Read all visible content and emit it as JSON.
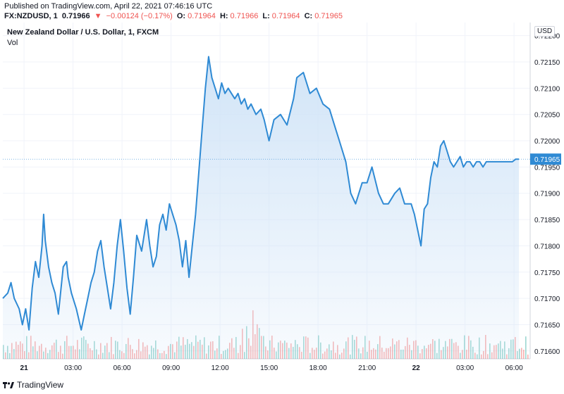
{
  "header": {
    "published": "Published on TradingView.com, April 22, 2021 07:46:16 UTC",
    "symbol": "FX:NZDUSD, 1",
    "last": "0.71966",
    "change": "−0.00124 (−0.17%)",
    "open_label": "O:",
    "open": "0.71964",
    "high_label": "H:",
    "high": "0.71966",
    "low_label": "L:",
    "low": "0.71964",
    "close_label": "C:",
    "close": "0.71965"
  },
  "legend": {
    "title": "New Zealand Dollar / U.S. Dollar, 1, FXCM",
    "vol": "Vol"
  },
  "currency": "USD",
  "footer": {
    "brand": "TradingView"
  },
  "colors": {
    "line": "#2f8ad4",
    "fill_top": "#cfe3f7",
    "grid": "#f0f3fa",
    "vol_up": "#26a69a",
    "vol_down": "#ef5350",
    "price_tag": "#2f8ad4"
  },
  "chart_data": {
    "type": "area",
    "title": "New Zealand Dollar / U.S. Dollar, 1, FXCM",
    "x_ticks": [
      "21",
      "03:00",
      "06:00",
      "09:00",
      "12:00",
      "15:00",
      "18:00",
      "21:00",
      "22",
      "03:00",
      "06:00"
    ],
    "y_ticks": [
      "0.72200",
      "0.72150",
      "0.72100",
      "0.72050",
      "0.72000",
      "0.71950",
      "0.71900",
      "0.71850",
      "0.71800",
      "0.71750",
      "0.71700",
      "0.71650",
      "0.71600"
    ],
    "ylim": [
      0.71585,
      0.72225
    ],
    "last_price": "0.71965",
    "series": [
      {
        "x": [
          0,
          0.3,
          0.5,
          0.7,
          1.0,
          1.2,
          1.4,
          1.6,
          1.8,
          2.0,
          2.2,
          2.4,
          2.5,
          2.6,
          2.8,
          3.0,
          3.2,
          3.4,
          3.5,
          3.7,
          3.9,
          4.0,
          4.2,
          4.5,
          4.8,
          5.0,
          5.2,
          5.4,
          5.6,
          5.8,
          6.0,
          6.2,
          6.4,
          6.6,
          6.8,
          7.0,
          7.2,
          7.4,
          7.6,
          7.8,
          8.0,
          8.2,
          8.5,
          8.8,
          9.0,
          9.2,
          9.4,
          9.6,
          9.8,
          10.0,
          10.2,
          10.4,
          10.6,
          10.8,
          11.0,
          11.2,
          11.4,
          11.6,
          11.8,
          12.0,
          12.2,
          12.4,
          12.6,
          12.8,
          13.0,
          13.2,
          13.4,
          13.6,
          13.8,
          14.0,
          14.2,
          14.4,
          14.6,
          14.8,
          15.0,
          15.2,
          15.5,
          15.8,
          16.0,
          16.3,
          16.6,
          17.0,
          17.4,
          17.8,
          18.0,
          18.4,
          18.8,
          19.2,
          19.6,
          20.0,
          20.3,
          20.6,
          21.0,
          21.3,
          21.6,
          22.0,
          22.3,
          22.6,
          23.0,
          23.3,
          23.6,
          24.0,
          24.3,
          24.6,
          25.0,
          25.2,
          25.4,
          25.6,
          25.8,
          26.0,
          26.2,
          26.4,
          26.6,
          26.8,
          27.0,
          27.2,
          27.4,
          27.6,
          27.8,
          28.0,
          28.2,
          28.4,
          28.6,
          28.8,
          29.0,
          29.2,
          29.4,
          29.6,
          29.8,
          30.0,
          30.2,
          30.4,
          30.6,
          30.8,
          31.0,
          31.2,
          31.4,
          31.6
        ],
        "values": [
          0.717,
          0.7171,
          0.7173,
          0.717,
          0.7168,
          0.7165,
          0.7168,
          0.7164,
          0.7172,
          0.7177,
          0.7174,
          0.718,
          0.7186,
          0.7181,
          0.7176,
          0.7173,
          0.7171,
          0.7167,
          0.717,
          0.7176,
          0.7177,
          0.7174,
          0.7171,
          0.7168,
          0.7164,
          0.7167,
          0.717,
          0.7173,
          0.7175,
          0.7179,
          0.7181,
          0.7176,
          0.7172,
          0.7168,
          0.7173,
          0.718,
          0.7185,
          0.7179,
          0.7172,
          0.7167,
          0.7174,
          0.7182,
          0.7179,
          0.7185,
          0.718,
          0.7176,
          0.7178,
          0.7184,
          0.7186,
          0.7183,
          0.7188,
          0.7186,
          0.7184,
          0.7181,
          0.7176,
          0.7181,
          0.7174,
          0.718,
          0.7186,
          0.7194,
          0.7202,
          0.721,
          0.7216,
          0.7212,
          0.721,
          0.7208,
          0.7211,
          0.7209,
          0.721,
          0.7209,
          0.7208,
          0.7209,
          0.7207,
          0.7208,
          0.7206,
          0.7207,
          0.7205,
          0.7206,
          0.7204,
          0.72,
          0.7204,
          0.7205,
          0.7203,
          0.7208,
          0.7212,
          0.7213,
          0.7209,
          0.721,
          0.7207,
          0.7206,
          0.7203,
          0.72,
          0.7196,
          0.719,
          0.7188,
          0.7192,
          0.7192,
          0.7195,
          0.719,
          0.7188,
          0.7188,
          0.719,
          0.7191,
          0.7188,
          0.7188,
          0.7186,
          0.7183,
          0.718,
          0.7187,
          0.7188,
          0.7193,
          0.7196,
          0.7195,
          0.7199,
          0.72,
          0.7198,
          0.7196,
          0.7195,
          0.7196,
          0.7197,
          0.7195,
          0.7196,
          0.7196,
          0.7195,
          0.7196,
          0.7196,
          0.7195,
          0.7196,
          0.7196,
          0.7196,
          0.7196,
          0.7196,
          0.7196,
          0.7196,
          0.7196,
          0.7196,
          0.71965,
          0.71965
        ]
      }
    ]
  }
}
